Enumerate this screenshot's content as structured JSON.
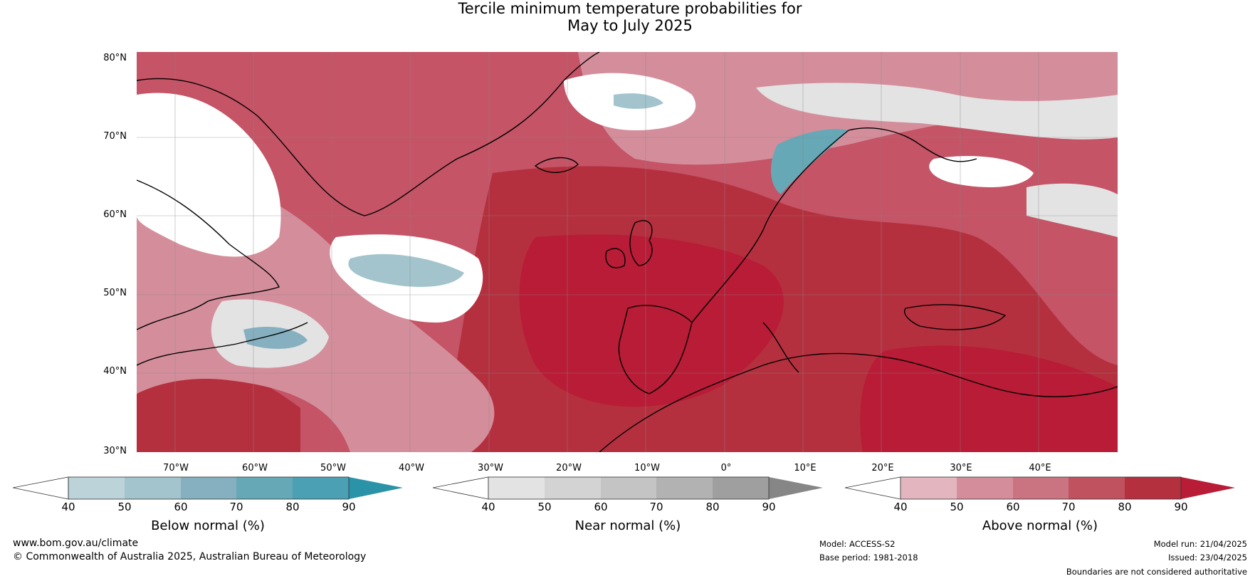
{
  "title_line1": "Tercile minimum temperature probabilities for",
  "title_line2": "May to July 2025",
  "map": {
    "lat_labels": [
      "80°N",
      "70°N",
      "60°N",
      "50°N",
      "40°N",
      "30°N"
    ],
    "lon_labels": [
      "70°W",
      "60°W",
      "50°W",
      "40°W",
      "30°W",
      "20°W",
      "10°W",
      "0°",
      "10°E",
      "20°E",
      "30°E",
      "40°E"
    ],
    "lat_range": [
      30,
      81
    ],
    "lon_range": [
      -77,
      48
    ]
  },
  "legends": [
    {
      "title": "Below normal (%)",
      "ticks": [
        "40",
        "50",
        "60",
        "70",
        "80",
        "90"
      ],
      "colors": [
        "#ffffff",
        "#bdd3da",
        "#a3c4cd",
        "#86b0c0",
        "#66a8b6",
        "#4ba1b3",
        "#2a93a7"
      ]
    },
    {
      "title": "Near normal (%)",
      "ticks": [
        "40",
        "50",
        "60",
        "70",
        "80",
        "90"
      ],
      "colors": [
        "#ffffff",
        "#e3e3e3",
        "#d3d3d3",
        "#c4c4c4",
        "#b2b2b2",
        "#9f9f9f",
        "#868686"
      ]
    },
    {
      "title": "Above normal (%)",
      "ticks": [
        "40",
        "50",
        "60",
        "70",
        "80",
        "90"
      ],
      "colors": [
        "#ffffff",
        "#e3b6bf",
        "#d48e9b",
        "#c97480",
        "#c0525f",
        "#b5303f",
        "#b81c36"
      ]
    }
  ],
  "footer": {
    "website": "www.bom.gov.au/climate",
    "copyright": "© Commonwealth of Australia 2025, Australian Bureau of Meteorology",
    "model": "Model: ACCESS-S2",
    "base_period": "Base period: 1981-2018",
    "model_run": "Model run: 21/04/2025",
    "issued": "Issued: 23/04/2025",
    "disclaimer": "Boundaries are not considered authoritative"
  }
}
